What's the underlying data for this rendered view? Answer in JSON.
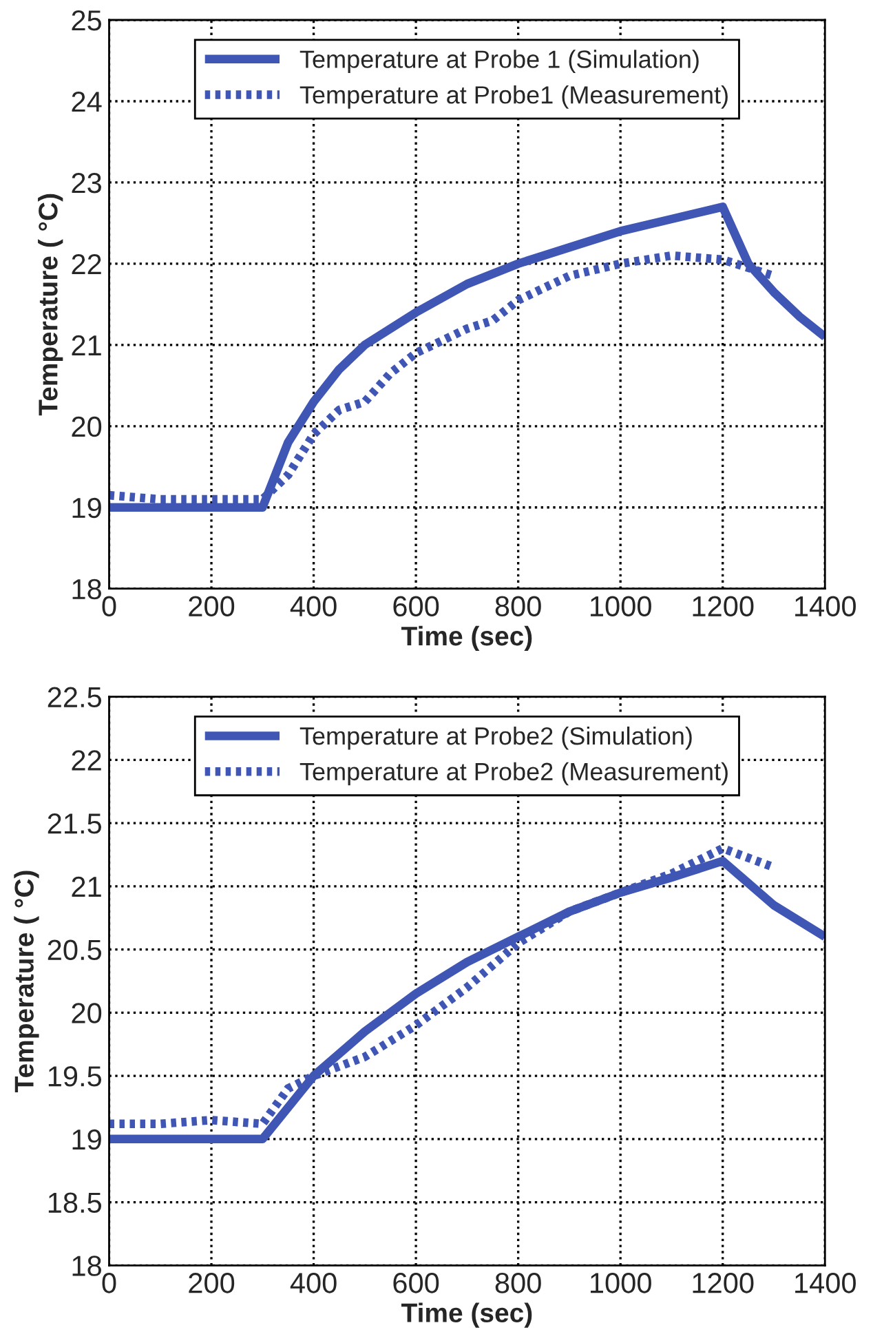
{
  "chart_data": [
    {
      "type": "line",
      "xlabel": "Time (sec)",
      "ylabel": "Temperature ( °C)",
      "xlim": [
        0,
        1400
      ],
      "xticks": [
        0,
        200,
        400,
        600,
        800,
        1000,
        1200,
        1400
      ],
      "ylim": [
        18,
        25
      ],
      "yticks": [
        18,
        19,
        20,
        21,
        22,
        23,
        24,
        25
      ],
      "grid": true,
      "legend": "top",
      "series": [
        {
          "name": "Temperature at Probe 1 (Simulation)",
          "color": "#3f56b5",
          "line_style": "solid",
          "x": [
            0,
            300,
            350,
            400,
            450,
            500,
            600,
            700,
            800,
            900,
            1000,
            1100,
            1200,
            1250,
            1300,
            1350,
            1400
          ],
          "values": [
            19,
            19,
            19.8,
            20.3,
            20.7,
            21.0,
            21.4,
            21.75,
            22.0,
            22.2,
            22.4,
            22.55,
            22.7,
            22.0,
            21.65,
            21.35,
            21.1
          ]
        },
        {
          "name": "Temperature at Probe1 (Measurement)",
          "color": "#3f56b5",
          "line_style": "dotted",
          "x": [
            0,
            100,
            200,
            300,
            350,
            400,
            450,
            500,
            550,
            600,
            700,
            750,
            800,
            900,
            1000,
            1100,
            1200,
            1300
          ],
          "values": [
            19.15,
            19.1,
            19.1,
            19.1,
            19.4,
            19.9,
            20.2,
            20.3,
            20.65,
            20.9,
            21.2,
            21.3,
            21.55,
            21.85,
            22.0,
            22.1,
            22.05,
            21.85
          ]
        }
      ]
    },
    {
      "type": "line",
      "xlabel": "Time (sec)",
      "ylabel": "Temperature ( °C)",
      "xlim": [
        0,
        1400
      ],
      "xticks": [
        0,
        200,
        400,
        600,
        800,
        1000,
        1200,
        1400
      ],
      "ylim": [
        18,
        22.5
      ],
      "yticks": [
        18,
        18.5,
        19,
        19.5,
        20,
        20.5,
        21,
        21.5,
        22,
        22.5
      ],
      "grid": true,
      "legend": "top",
      "series": [
        {
          "name": "Temperature at Probe2 (Simulation)",
          "color": "#3f56b5",
          "line_style": "solid",
          "x": [
            0,
            300,
            400,
            500,
            600,
            700,
            800,
            900,
            1000,
            1100,
            1200,
            1300,
            1400
          ],
          "values": [
            19,
            19,
            19.5,
            19.85,
            20.15,
            20.4,
            20.6,
            20.8,
            20.95,
            21.07,
            21.2,
            20.85,
            20.6
          ]
        },
        {
          "name": "Temperature at Probe2 (Measurement)",
          "color": "#3f56b5",
          "line_style": "dotted",
          "x": [
            0,
            100,
            200,
            300,
            350,
            400,
            500,
            600,
            700,
            800,
            900,
            1000,
            1100,
            1200,
            1300
          ],
          "values": [
            19.12,
            19.12,
            19.15,
            19.12,
            19.4,
            19.5,
            19.65,
            19.9,
            20.2,
            20.55,
            20.8,
            20.95,
            21.1,
            21.3,
            21.15
          ]
        }
      ]
    }
  ]
}
